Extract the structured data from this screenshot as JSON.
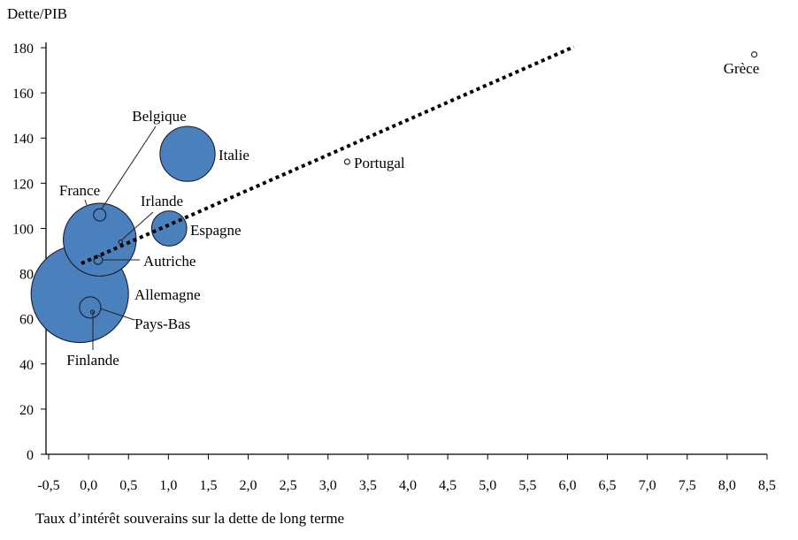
{
  "chart_data": {
    "type": "scatter",
    "title": "",
    "ylabel": "Dette/PIB",
    "xlabel": "Taux d’intérêt souverains sur la dette de long terme",
    "xlim": [
      -0.5,
      8.5
    ],
    "ylim": [
      0,
      180
    ],
    "xticks": [
      "-0,5",
      "0,0",
      "0,5",
      "1,0",
      "1,5",
      "2,0",
      "2,5",
      "3,0",
      "3,5",
      "4,0",
      "4,5",
      "5,0",
      "5,5",
      "6,0",
      "6,5",
      "7,0",
      "7,5",
      "8,0",
      "8,5"
    ],
    "yticks": [
      "0",
      "20",
      "40",
      "60",
      "80",
      "100",
      "120",
      "140",
      "160",
      "180"
    ],
    "grid": false,
    "bubble_color": "#4a81bd",
    "points": [
      {
        "name": "Allemagne",
        "x": -0.11,
        "y": 71,
        "size": 100
      },
      {
        "name": "France",
        "x": 0.14,
        "y": 95,
        "size": 56
      },
      {
        "name": "Italie",
        "x": 1.24,
        "y": 133,
        "size": 32
      },
      {
        "name": "Espagne",
        "x": 1.01,
        "y": 100,
        "size": 13
      },
      {
        "name": "Pays-Bas",
        "x": 0.02,
        "y": 65,
        "size": 4.8
      },
      {
        "name": "Belgique",
        "x": 0.14,
        "y": 106,
        "size": 1.6
      },
      {
        "name": "Autriche",
        "x": 0.12,
        "y": 86,
        "size": 0.8
      },
      {
        "name": "Irlande",
        "x": 0.4,
        "y": 94,
        "size": 0.15
      },
      {
        "name": "Finlande",
        "x": 0.05,
        "y": 63,
        "size": 0.15
      },
      {
        "name": "Portugal",
        "x": 3.24,
        "y": 129.5,
        "size": 0.3
      },
      {
        "name": "Grèce",
        "x": 8.34,
        "y": 177,
        "size": 0.3
      }
    ],
    "trendline": {
      "x": [
        -0.09,
        6.08
      ],
      "y": [
        84.5,
        180.4
      ],
      "style": "dotted"
    }
  }
}
